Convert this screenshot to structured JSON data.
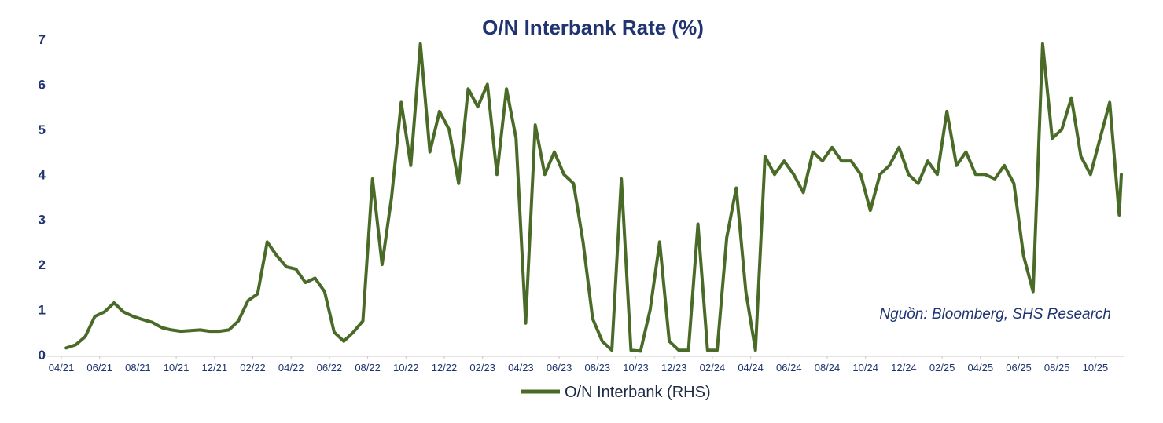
{
  "chart_data": {
    "type": "line",
    "title": "O/N Interbank Rate (%)",
    "xlabel": "",
    "ylabel": "",
    "ylim": [
      0,
      7
    ],
    "yticks": [
      0,
      1,
      2,
      3,
      4,
      5,
      6,
      7
    ],
    "x_tick_labels": [
      "04/21",
      "06/21",
      "08/21",
      "10/21",
      "12/21",
      "02/22",
      "04/22",
      "06/22",
      "08/22",
      "10/22",
      "12/22",
      "02/23",
      "04/23",
      "06/23",
      "08/23",
      "10/23",
      "12/23",
      "02/24",
      "04/24",
      "06/24",
      "08/24",
      "10/24",
      "12/24",
      "02/25",
      "04/25",
      "06/25",
      "08/25",
      "10/25"
    ],
    "grid": false,
    "legend_position": "bottom",
    "annotation": "Nguồn:  Bloomberg, SHS Research",
    "colors": {
      "line": "#4a6b28",
      "text": "#1f3470"
    },
    "series": [
      {
        "name": "O/N Interbank (RHS)",
        "points": [
          [
            "04/21",
            0.15
          ],
          [
            "04/21",
            0.22
          ],
          [
            "05/21",
            0.4
          ],
          [
            "05/21",
            0.85
          ],
          [
            "06/21",
            0.95
          ],
          [
            "06/21",
            1.15
          ],
          [
            "07/21",
            0.95
          ],
          [
            "07/21",
            0.85
          ],
          [
            "08/21",
            0.78
          ],
          [
            "08/21",
            0.72
          ],
          [
            "09/21",
            0.6
          ],
          [
            "09/21",
            0.55
          ],
          [
            "10/21",
            0.52
          ],
          [
            "11/21",
            0.55
          ],
          [
            "11/21",
            0.52
          ],
          [
            "12/21",
            0.52
          ],
          [
            "12/21",
            0.55
          ],
          [
            "01/22",
            0.75
          ],
          [
            "01/22",
            1.2
          ],
          [
            "02/22",
            1.35
          ],
          [
            "02/22",
            2.5
          ],
          [
            "03/22",
            2.2
          ],
          [
            "03/22",
            1.95
          ],
          [
            "04/22",
            1.9
          ],
          [
            "04/22",
            1.6
          ],
          [
            "05/22",
            1.7
          ],
          [
            "05/22",
            1.4
          ],
          [
            "06/22",
            0.5
          ],
          [
            "06/22",
            0.3
          ],
          [
            "07/22",
            0.5
          ],
          [
            "07/22",
            0.75
          ],
          [
            "08/22",
            3.9
          ],
          [
            "08/22",
            2.0
          ],
          [
            "09/22",
            3.5
          ],
          [
            "09/22",
            5.6
          ],
          [
            "10/22",
            4.2
          ],
          [
            "10/22",
            6.9
          ],
          [
            "11/22",
            4.5
          ],
          [
            "11/22",
            5.4
          ],
          [
            "12/22",
            5.0
          ],
          [
            "12/22",
            3.8
          ],
          [
            "01/23",
            5.9
          ],
          [
            "01/23",
            5.5
          ],
          [
            "02/23",
            6.0
          ],
          [
            "02/23",
            4.0
          ],
          [
            "03/23",
            5.9
          ],
          [
            "03/23",
            4.8
          ],
          [
            "04/23",
            0.7
          ],
          [
            "04/23",
            5.1
          ],
          [
            "05/23",
            4.0
          ],
          [
            "05/23",
            4.5
          ],
          [
            "06/23",
            4.0
          ],
          [
            "06/23",
            3.8
          ],
          [
            "07/23",
            2.5
          ],
          [
            "07/23",
            0.8
          ],
          [
            "08/23",
            0.3
          ],
          [
            "08/23",
            0.1
          ],
          [
            "09/23",
            3.9
          ],
          [
            "09/23",
            0.1
          ],
          [
            "10/23",
            0.08
          ],
          [
            "10/23",
            1.0
          ],
          [
            "11/23",
            2.5
          ],
          [
            "11/23",
            0.3
          ],
          [
            "12/23",
            0.1
          ],
          [
            "12/23",
            0.1
          ],
          [
            "01/24",
            2.9
          ],
          [
            "01/24",
            0.1
          ],
          [
            "02/24",
            0.1
          ],
          [
            "02/24",
            2.6
          ],
          [
            "03/24",
            3.7
          ],
          [
            "03/24",
            1.4
          ],
          [
            "04/24",
            0.1
          ],
          [
            "04/24",
            4.4
          ],
          [
            "05/24",
            4.0
          ],
          [
            "05/24",
            4.3
          ],
          [
            "06/24",
            4.0
          ],
          [
            "06/24",
            3.6
          ],
          [
            "07/24",
            4.5
          ],
          [
            "07/24",
            4.3
          ],
          [
            "08/24",
            4.6
          ],
          [
            "08/24",
            4.3
          ],
          [
            "09/24",
            4.3
          ],
          [
            "09/24",
            4.0
          ],
          [
            "10/24",
            3.2
          ],
          [
            "10/24",
            4.0
          ],
          [
            "11/24",
            4.2
          ],
          [
            "11/24",
            4.6
          ],
          [
            "12/24",
            4.0
          ],
          [
            "12/24",
            3.8
          ],
          [
            "01/25",
            4.3
          ],
          [
            "01/25",
            4.0
          ],
          [
            "02/25",
            5.4
          ],
          [
            "02/25",
            4.2
          ],
          [
            "03/25",
            4.5
          ],
          [
            "03/25",
            4.0
          ],
          [
            "04/25",
            4.0
          ],
          [
            "04/25",
            3.9
          ],
          [
            "05/25",
            4.2
          ],
          [
            "05/25",
            3.8
          ],
          [
            "06/25",
            2.2
          ],
          [
            "06/25",
            1.4
          ],
          [
            "07/25",
            6.9
          ],
          [
            "07/25",
            4.8
          ],
          [
            "08/25",
            5.0
          ],
          [
            "08/25",
            5.7
          ],
          [
            "09/25",
            4.4
          ],
          [
            "09/25",
            4.0
          ],
          [
            "10/25",
            4.8
          ],
          [
            "10/25",
            5.6
          ],
          [
            "11/25",
            3.1
          ],
          [
            "11/25",
            4.0
          ]
        ]
      }
    ]
  }
}
